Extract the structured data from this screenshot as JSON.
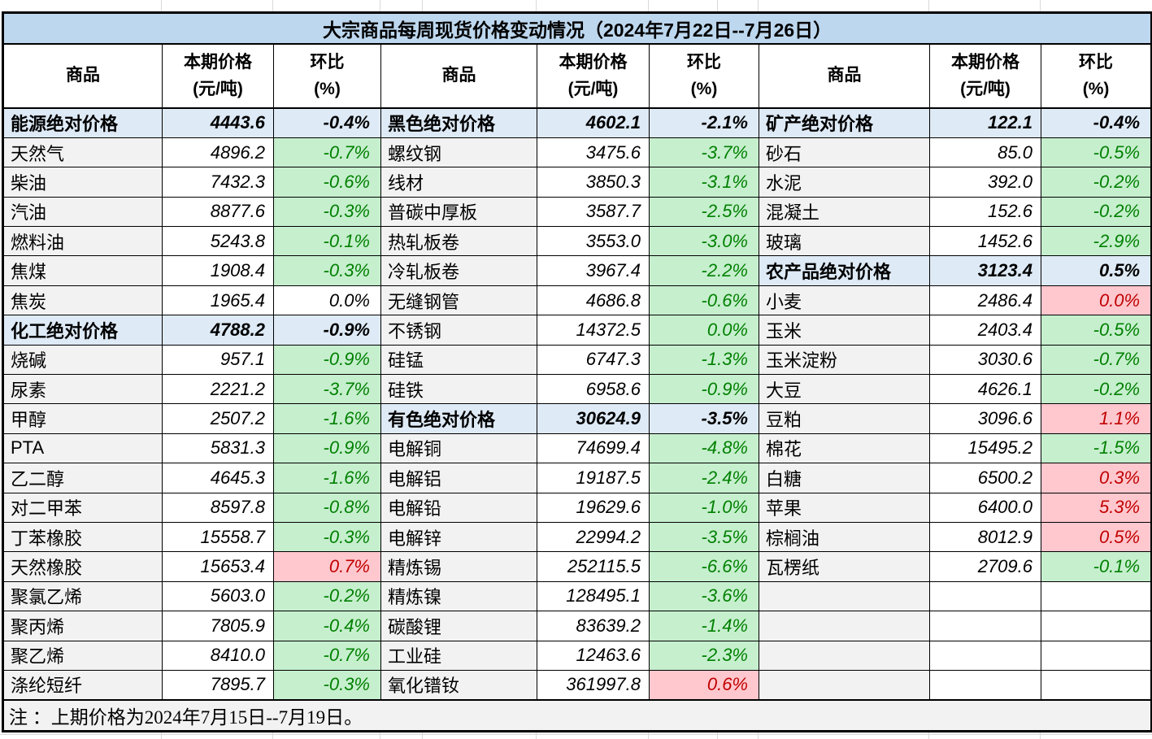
{
  "title": "大宗商品每周现货价格变动情况（2024年7月22日--7月26日）",
  "headers": {
    "commodity": "商品",
    "price": "本期价格\n(元/吨)",
    "pct": "环比\n(%)"
  },
  "note": "注 ：上期价格为2024年7月15日--7月19日。",
  "colors": {
    "title_bg": "#BDD7EE",
    "category_bg": "#DEEAF6",
    "name_bg": "#F2F2F2",
    "down_bg": "#C6EFCE",
    "down_text": "#008000",
    "up_bg": "#FFC7CE",
    "up_text": "#C00000",
    "border": "#000000"
  },
  "groups": [
    {
      "rows": [
        {
          "name": "能源绝对价格",
          "price": "4443.6",
          "pct": "-0.4%",
          "type": "category"
        },
        {
          "name": "天然气",
          "price": "4896.2",
          "pct": "-0.7%",
          "type": "down"
        },
        {
          "name": "柴油",
          "price": "7432.3",
          "pct": "-0.6%",
          "type": "down"
        },
        {
          "name": "汽油",
          "price": "8877.6",
          "pct": "-0.3%",
          "type": "down"
        },
        {
          "name": "燃料油",
          "price": "5243.8",
          "pct": "-0.1%",
          "type": "down"
        },
        {
          "name": "焦煤",
          "price": "1908.4",
          "pct": "-0.3%",
          "type": "down"
        },
        {
          "name": "焦炭",
          "price": "1965.4",
          "pct": "0.0%",
          "type": "flat"
        },
        {
          "name": "化工绝对价格",
          "price": "4788.2",
          "pct": "-0.9%",
          "type": "category"
        },
        {
          "name": "烧碱",
          "price": "957.1",
          "pct": "-0.9%",
          "type": "down"
        },
        {
          "name": "尿素",
          "price": "2221.2",
          "pct": "-3.7%",
          "type": "down"
        },
        {
          "name": "甲醇",
          "price": "2507.2",
          "pct": "-1.6%",
          "type": "down"
        },
        {
          "name": "PTA",
          "price": "5831.3",
          "pct": "-0.9%",
          "type": "down"
        },
        {
          "name": "乙二醇",
          "price": "4645.3",
          "pct": "-1.6%",
          "type": "down"
        },
        {
          "name": "对二甲苯",
          "price": "8597.8",
          "pct": "-0.8%",
          "type": "down"
        },
        {
          "name": "丁苯橡胶",
          "price": "15558.7",
          "pct": "-0.3%",
          "type": "down"
        },
        {
          "name": "天然橡胶",
          "price": "15653.4",
          "pct": "0.7%",
          "type": "up"
        },
        {
          "name": "聚氯乙烯",
          "price": "5603.0",
          "pct": "-0.2%",
          "type": "down"
        },
        {
          "name": "聚丙烯",
          "price": "7805.9",
          "pct": "-0.4%",
          "type": "down"
        },
        {
          "name": "聚乙烯",
          "price": "8410.0",
          "pct": "-0.7%",
          "type": "down"
        },
        {
          "name": "涤纶短纤",
          "price": "7895.7",
          "pct": "-0.3%",
          "type": "down"
        }
      ]
    },
    {
      "rows": [
        {
          "name": "黑色绝对价格",
          "price": "4602.1",
          "pct": "-2.1%",
          "type": "category"
        },
        {
          "name": "螺纹钢",
          "price": "3475.6",
          "pct": "-3.7%",
          "type": "down"
        },
        {
          "name": "线材",
          "price": "3850.3",
          "pct": "-3.1%",
          "type": "down"
        },
        {
          "name": "普碳中厚板",
          "price": "3587.7",
          "pct": "-2.5%",
          "type": "down"
        },
        {
          "name": "热轧板卷",
          "price": "3553.0",
          "pct": "-3.0%",
          "type": "down"
        },
        {
          "name": "冷轧板卷",
          "price": "3967.4",
          "pct": "-2.2%",
          "type": "down"
        },
        {
          "name": "无缝钢管",
          "price": "4686.8",
          "pct": "-0.6%",
          "type": "down"
        },
        {
          "name": "不锈钢",
          "price": "14372.5",
          "pct": "0.0%",
          "type": "down"
        },
        {
          "name": "硅锰",
          "price": "6747.3",
          "pct": "-1.3%",
          "type": "down"
        },
        {
          "name": "硅铁",
          "price": "6958.6",
          "pct": "-0.9%",
          "type": "down"
        },
        {
          "name": "有色绝对价格",
          "price": "30624.9",
          "pct": "-3.5%",
          "type": "category"
        },
        {
          "name": "电解铜",
          "price": "74699.4",
          "pct": "-4.8%",
          "type": "down"
        },
        {
          "name": "电解铝",
          "price": "19187.5",
          "pct": "-2.4%",
          "type": "down"
        },
        {
          "name": "电解铅",
          "price": "19629.6",
          "pct": "-1.0%",
          "type": "down"
        },
        {
          "name": "电解锌",
          "price": "22994.2",
          "pct": "-3.5%",
          "type": "down"
        },
        {
          "name": "精炼锡",
          "price": "252115.5",
          "pct": "-6.6%",
          "type": "down"
        },
        {
          "name": "精炼镍",
          "price": "128495.1",
          "pct": "-3.6%",
          "type": "down"
        },
        {
          "name": "碳酸锂",
          "price": "83639.2",
          "pct": "-1.4%",
          "type": "down"
        },
        {
          "name": "工业硅",
          "price": "12463.6",
          "pct": "-2.3%",
          "type": "down"
        },
        {
          "name": "氧化镨钕",
          "price": "361997.8",
          "pct": "0.6%",
          "type": "up"
        }
      ]
    },
    {
      "rows": [
        {
          "name": "矿产绝对价格",
          "price": "122.1",
          "pct": "-0.4%",
          "type": "category"
        },
        {
          "name": "砂石",
          "price": "85.0",
          "pct": "-0.5%",
          "type": "down"
        },
        {
          "name": "水泥",
          "price": "392.0",
          "pct": "-0.2%",
          "type": "down"
        },
        {
          "name": "混凝土",
          "price": "152.6",
          "pct": "-0.2%",
          "type": "down"
        },
        {
          "name": "玻璃",
          "price": "1452.6",
          "pct": "-2.9%",
          "type": "down"
        },
        {
          "name": "农产品绝对价格",
          "price": "3123.4",
          "pct": "0.5%",
          "type": "category"
        },
        {
          "name": "小麦",
          "price": "2486.4",
          "pct": "0.0%",
          "type": "up"
        },
        {
          "name": "玉米",
          "price": "2403.4",
          "pct": "-0.5%",
          "type": "down"
        },
        {
          "name": "玉米淀粉",
          "price": "3030.6",
          "pct": "-0.7%",
          "type": "down"
        },
        {
          "name": "大豆",
          "price": "4626.1",
          "pct": "-0.2%",
          "type": "down"
        },
        {
          "name": "豆粕",
          "price": "3096.6",
          "pct": "1.1%",
          "type": "up"
        },
        {
          "name": "棉花",
          "price": "15495.2",
          "pct": "-1.5%",
          "type": "down"
        },
        {
          "name": "白糖",
          "price": "6500.2",
          "pct": "0.3%",
          "type": "up"
        },
        {
          "name": "苹果",
          "price": "6400.0",
          "pct": "5.3%",
          "type": "up"
        },
        {
          "name": "棕榈油",
          "price": "8012.9",
          "pct": "0.5%",
          "type": "up"
        },
        {
          "name": "瓦楞纸",
          "price": "2709.6",
          "pct": "-0.1%",
          "type": "down"
        },
        {
          "name": "",
          "price": "",
          "pct": "",
          "type": "empty"
        },
        {
          "name": "",
          "price": "",
          "pct": "",
          "type": "empty"
        },
        {
          "name": "",
          "price": "",
          "pct": "",
          "type": "empty"
        },
        {
          "name": "",
          "price": "",
          "pct": "",
          "type": "empty"
        }
      ]
    }
  ]
}
